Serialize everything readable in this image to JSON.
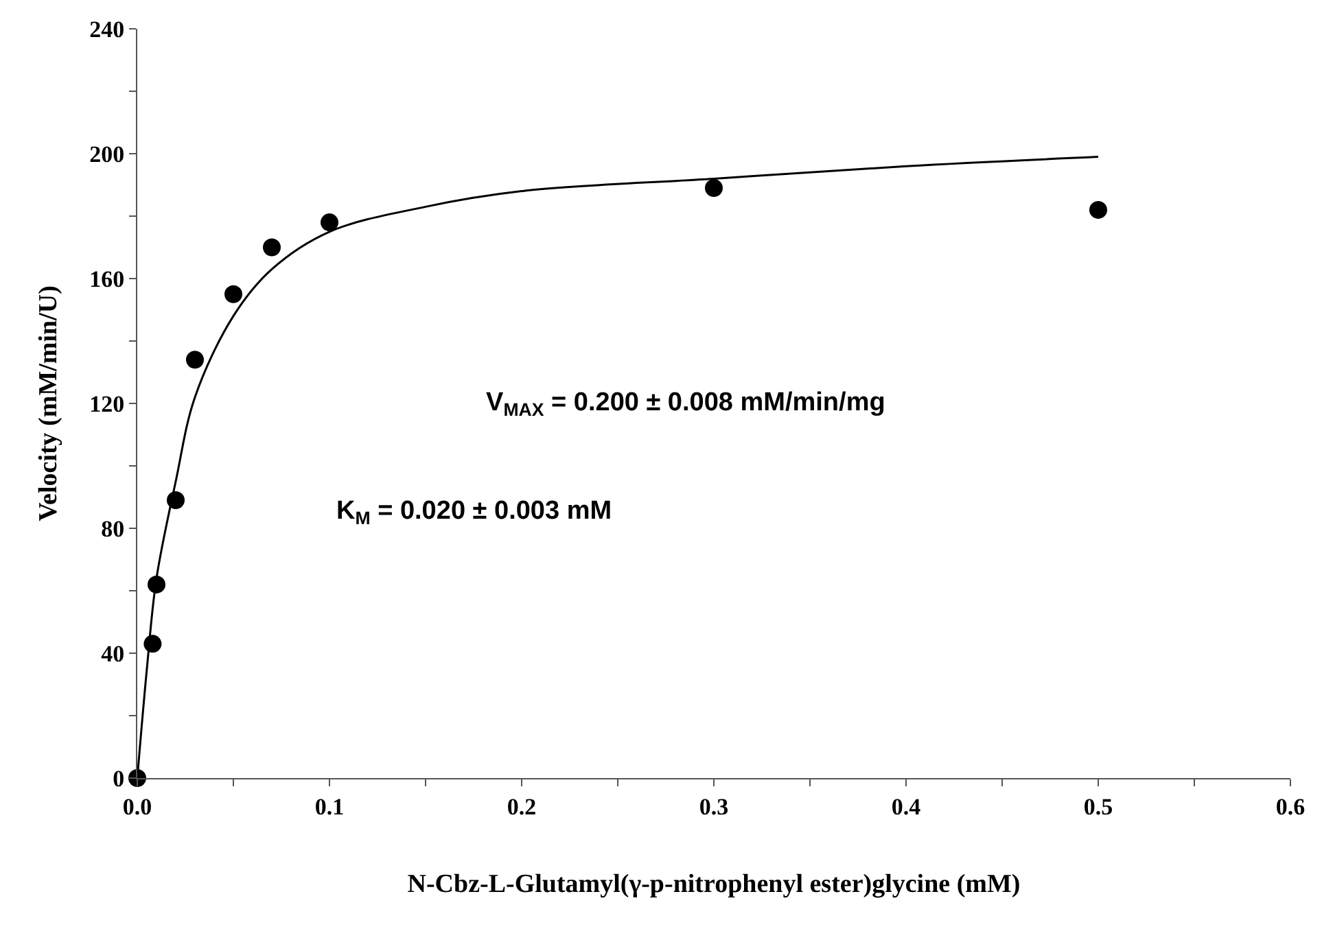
{
  "chart_data": {
    "type": "scatter",
    "xlabel": "N-Cbz-L-Glutamyl(γ-p-nitrophenyl ester)glycine (mM)",
    "ylabel": "Velocity (mM/min/U)",
    "xlim": [
      0,
      0.6
    ],
    "ylim": [
      0,
      240
    ],
    "xticks": [
      {
        "value": 0,
        "label": "0.0"
      },
      {
        "value": 0.05,
        "label": null
      },
      {
        "value": 0.1,
        "label": "0.1"
      },
      {
        "value": 0.15,
        "label": null
      },
      {
        "value": 0.2,
        "label": "0.2"
      },
      {
        "value": 0.25,
        "label": null
      },
      {
        "value": 0.3,
        "label": "0.3"
      },
      {
        "value": 0.35,
        "label": null
      },
      {
        "value": 0.4,
        "label": "0.4"
      },
      {
        "value": 0.45,
        "label": null
      },
      {
        "value": 0.5,
        "label": "0.5"
      },
      {
        "value": 0.55,
        "label": null
      },
      {
        "value": 0.6,
        "label": "0.6"
      }
    ],
    "yticks": [
      0,
      {
        "value": 20,
        "label": null
      },
      40,
      {
        "value": 60,
        "label": null
      },
      80,
      {
        "value": 100,
        "label": null
      },
      120,
      {
        "value": 140,
        "label": null
      },
      160,
      {
        "value": 180,
        "label": null
      },
      200,
      {
        "value": 220,
        "label": null
      },
      240
    ],
    "marker": "circle",
    "series": [
      {
        "color": "#000000",
        "x": [
          0,
          0.008,
          0.01,
          0.02,
          0.03,
          0.05,
          0.07,
          0.1,
          0.3,
          0.5
        ],
        "values": [
          0,
          43,
          62,
          89,
          134,
          155,
          170,
          178,
          189,
          182
        ]
      },
      {
        "type": "line",
        "color": "#000000",
        "marker": "none",
        "line_style": "solid",
        "x": [
          0,
          0.005,
          0.01,
          0.02,
          0.03,
          0.05,
          0.07,
          0.1,
          0.15,
          0.2,
          0.3,
          0.4,
          0.5
        ],
        "values": [
          0,
          35,
          64,
          95,
          122,
          148,
          163,
          175,
          183,
          188,
          192,
          196,
          199
        ]
      }
    ],
    "annotations": [
      "V$_{MAX}$ = 0.200 ± 0.008 mM/min/mg",
      "K$_{M}$ = 0.020 ± 0.003 mM"
    ]
  }
}
